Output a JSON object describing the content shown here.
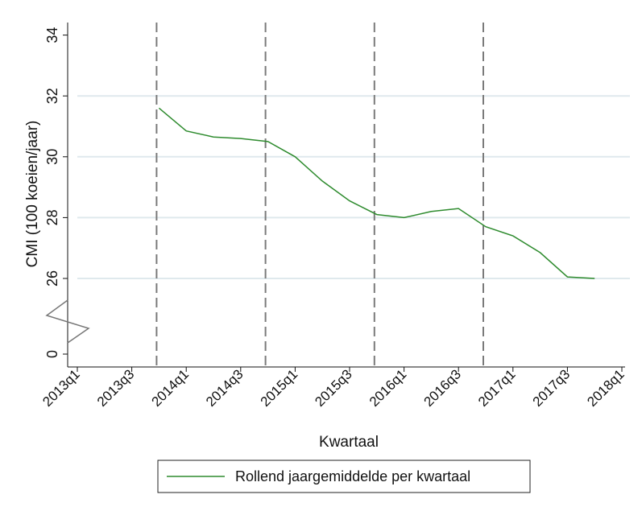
{
  "chart_data": {
    "type": "line",
    "xlabel": "Kwartaal",
    "ylabel": "CMI (100 koeien/jaar)",
    "x_ticks": [
      "2013q1",
      "2013q3",
      "2014q1",
      "2014q3",
      "2015q1",
      "2015q3",
      "2016q1",
      "2016q3",
      "2017q1",
      "2017q3",
      "2018q1"
    ],
    "y_ticks": [
      "0",
      "26",
      "28",
      "30",
      "32",
      "34"
    ],
    "y_axis_break": true,
    "ylim": [
      25.3,
      34.4
    ],
    "grid": "horizontal",
    "vertical_reference_lines": [
      "2013q4",
      "2014q4",
      "2015q4",
      "2016q4"
    ],
    "series": [
      {
        "name": "Rollend jaargemiddelde per kwartaal",
        "color": "#2e8b2e",
        "x": [
          "2013q4",
          "2014q1",
          "2014q2",
          "2014q3",
          "2014q4",
          "2015q1",
          "2015q2",
          "2015q3",
          "2015q4",
          "2016q1",
          "2016q2",
          "2016q3",
          "2016q4",
          "2017q1",
          "2017q2",
          "2017q3",
          "2017q4"
        ],
        "values": [
          31.6,
          30.85,
          30.65,
          30.6,
          30.5,
          30.0,
          29.2,
          28.55,
          28.1,
          28.0,
          28.2,
          28.3,
          27.7,
          27.4,
          26.85,
          26.05,
          26.0
        ]
      }
    ],
    "legend_position": "bottom"
  },
  "colors": {
    "grid": "#dfe9ed",
    "axis": "#111111",
    "reference_line": "#7a7a7a",
    "legend_border": "#222222"
  }
}
